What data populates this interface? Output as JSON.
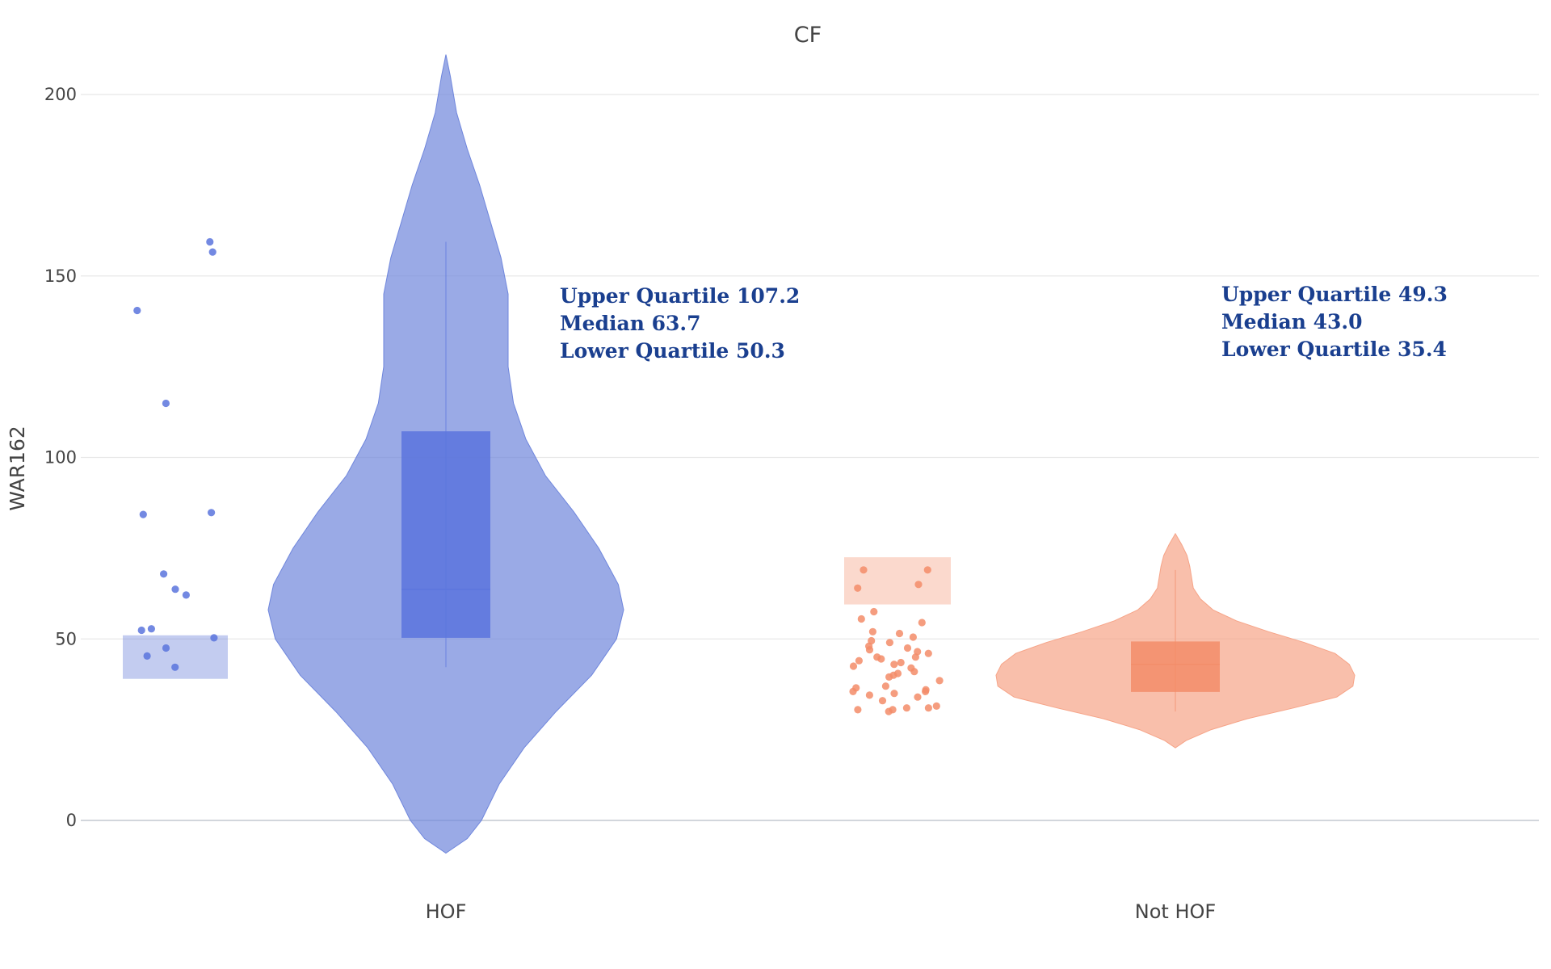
{
  "chart_data": {
    "type": "violin",
    "title": "CF",
    "ylabel": "WAR162",
    "xlabel": "",
    "ylim": [
      -12,
      211
    ],
    "yticks": [
      0,
      50,
      100,
      150,
      200
    ],
    "grid": true,
    "legend": "none",
    "categories": [
      "HOF",
      "Not HOF"
    ],
    "series": [
      {
        "category": "HOF",
        "color": "#6f86dc",
        "box_color": "#5b74dd",
        "points": [
          159.4,
          156.6,
          140.5,
          114.9,
          84.8,
          84.3,
          67.9,
          63.7,
          62.1,
          52.8,
          52.4,
          50.3,
          47.5,
          45.3,
          42.2
        ],
        "upper_quartile": 107.2,
        "median": 63.7,
        "lower_quartile": 50.3,
        "point_box": [
          39,
          51
        ],
        "violin_range": [
          -9,
          211
        ],
        "violin_profile": [
          [
            -9,
            0.0
          ],
          [
            -5,
            0.12
          ],
          [
            0,
            0.2
          ],
          [
            10,
            0.3
          ],
          [
            20,
            0.44
          ],
          [
            30,
            0.62
          ],
          [
            40,
            0.82
          ],
          [
            50,
            0.96
          ],
          [
            58,
            1.0
          ],
          [
            65,
            0.97
          ],
          [
            75,
            0.86
          ],
          [
            85,
            0.72
          ],
          [
            95,
            0.56
          ],
          [
            105,
            0.45
          ],
          [
            115,
            0.38
          ],
          [
            125,
            0.35
          ],
          [
            135,
            0.35
          ],
          [
            145,
            0.35
          ],
          [
            155,
            0.31
          ],
          [
            165,
            0.25
          ],
          [
            175,
            0.19
          ],
          [
            185,
            0.12
          ],
          [
            195,
            0.06
          ],
          [
            205,
            0.025
          ],
          [
            211,
            0.0
          ]
        ],
        "annotation": {
          "upper": "Upper Quartile 107.2",
          "median": "Median 63.7",
          "lower": "Lower Quartile 50.3"
        }
      },
      {
        "category": "Not HOF",
        "color": "#f6a488",
        "box_color": "#f38c69",
        "points": [
          69,
          69,
          65,
          64,
          57.5,
          55.5,
          54.5,
          52,
          51.5,
          50.5,
          49.5,
          49,
          48,
          47.5,
          47,
          46.5,
          46,
          45,
          45,
          44.5,
          44,
          43.5,
          43,
          42.5,
          42,
          41,
          40.5,
          40,
          39.5,
          38.5,
          37,
          36.5,
          36,
          35.5,
          35.5,
          35,
          34.5,
          34,
          33,
          31.5,
          31,
          31,
          30.5,
          30.5,
          30
        ],
        "upper_quartile": 49.3,
        "median": 43.0,
        "lower_quartile": 35.4,
        "point_box": [
          59.5,
          72.5
        ],
        "violin_range": [
          20,
          79
        ],
        "violin_profile": [
          [
            20,
            0.0
          ],
          [
            22,
            0.06
          ],
          [
            25,
            0.2
          ],
          [
            28,
            0.4
          ],
          [
            31,
            0.66
          ],
          [
            34,
            0.9
          ],
          [
            37,
            0.99
          ],
          [
            40,
            1.0
          ],
          [
            43,
            0.97
          ],
          [
            46,
            0.89
          ],
          [
            49,
            0.72
          ],
          [
            52,
            0.52
          ],
          [
            55,
            0.34
          ],
          [
            58,
            0.21
          ],
          [
            61,
            0.14
          ],
          [
            64,
            0.1
          ],
          [
            67,
            0.09
          ],
          [
            70,
            0.08
          ],
          [
            73,
            0.065
          ],
          [
            76,
            0.035
          ],
          [
            79,
            0.0
          ]
        ],
        "annotation": {
          "upper": "Upper Quartile 49.3",
          "median": "Median 43.0",
          "lower": "Lower Quartile 35.4"
        }
      }
    ]
  }
}
